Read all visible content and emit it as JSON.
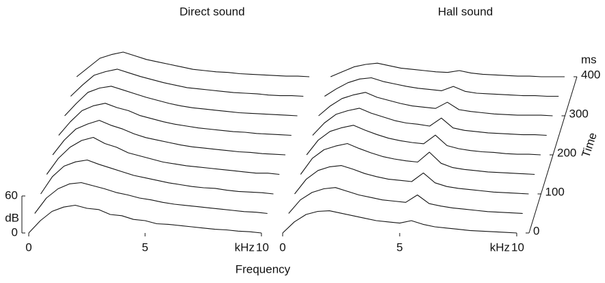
{
  "chart_data": [
    {
      "type": "waterfall",
      "title": "Direct sound",
      "xlabel": "Frequency",
      "x_unit": "kHz",
      "xlim": [
        0,
        10
      ],
      "xticks": [
        0,
        5,
        10
      ],
      "ylabel": "dB",
      "ylim": [
        0,
        60
      ],
      "yticks": [
        0,
        60
      ],
      "tlim": [
        0,
        400
      ],
      "color": "#111111",
      "x": [
        0.5,
        1,
        1.5,
        2,
        2.5,
        3,
        3.5,
        4,
        4.5,
        5,
        5.5,
        6,
        6.5,
        7,
        7.5,
        8,
        8.5,
        9,
        9.5
      ],
      "times": [
        0,
        50,
        100,
        150,
        200,
        250,
        300,
        350,
        400
      ],
      "values": [
        [
          20,
          35,
          42,
          45,
          40,
          38,
          30,
          28,
          22,
          20,
          15,
          14,
          12,
          10,
          8,
          6,
          5,
          3,
          2
        ],
        [
          25,
          40,
          48,
          50,
          45,
          40,
          34,
          30,
          25,
          22,
          18,
          15,
          13,
          11,
          9,
          7,
          5,
          3,
          2
        ],
        [
          28,
          45,
          52,
          55,
          48,
          42,
          36,
          30,
          26,
          22,
          18,
          15,
          12,
          10,
          9,
          6,
          4,
          3,
          2
        ],
        [
          26,
          44,
          55,
          60,
          50,
          44,
          35,
          30,
          25,
          20,
          17,
          14,
          12,
          10,
          8,
          6,
          4,
          2,
          2
        ],
        [
          24,
          42,
          50,
          56,
          48,
          42,
          34,
          28,
          24,
          20,
          16,
          13,
          11,
          9,
          7,
          5,
          4,
          2,
          1
        ],
        [
          22,
          40,
          48,
          52,
          45,
          40,
          32,
          27,
          22,
          18,
          15,
          12,
          10,
          8,
          6,
          5,
          3,
          2,
          1
        ],
        [
          20,
          38,
          45,
          48,
          42,
          36,
          30,
          25,
          20,
          16,
          13,
          11,
          9,
          7,
          5,
          4,
          3,
          2,
          1
        ],
        [
          18,
          34,
          40,
          44,
          38,
          32,
          27,
          22,
          18,
          14,
          12,
          10,
          8,
          6,
          5,
          4,
          2,
          1,
          1
        ],
        [
          15,
          30,
          36,
          40,
          34,
          28,
          24,
          20,
          16,
          12,
          10,
          8,
          7,
          5,
          4,
          3,
          2,
          1,
          1
        ]
      ]
    },
    {
      "type": "waterfall",
      "title": "Hall sound",
      "x_unit": "kHz",
      "xlim": [
        0,
        10
      ],
      "xticks": [
        0,
        5,
        10
      ],
      "ylim": [
        0,
        60
      ],
      "tlabel": "Time",
      "tunit": "ms",
      "tlim": [
        0,
        400
      ],
      "tticks": [
        0,
        100,
        200,
        300,
        400
      ],
      "color": "#111111",
      "x": [
        0.5,
        1,
        1.5,
        2,
        2.5,
        3,
        3.5,
        4,
        4.5,
        5,
        5.5,
        6,
        6.5,
        7,
        7.5,
        8,
        8.5,
        9,
        9.5
      ],
      "times": [
        0,
        50,
        100,
        150,
        200,
        250,
        300,
        350,
        400
      ],
      "values": [
        [
          18,
          30,
          35,
          36,
          32,
          28,
          24,
          20,
          18,
          16,
          20,
          14,
          10,
          8,
          6,
          4,
          3,
          2,
          1
        ],
        [
          22,
          34,
          40,
          42,
          36,
          30,
          26,
          22,
          20,
          18,
          30,
          16,
          12,
          9,
          7,
          5,
          3,
          2,
          1
        ],
        [
          24,
          38,
          44,
          46,
          40,
          33,
          28,
          24,
          22,
          20,
          34,
          18,
          12,
          9,
          7,
          5,
          3,
          2,
          1
        ],
        [
          26,
          40,
          46,
          50,
          42,
          35,
          29,
          25,
          22,
          20,
          36,
          18,
          11,
          8,
          6,
          4,
          3,
          2,
          1
        ],
        [
          24,
          38,
          44,
          48,
          40,
          33,
          27,
          23,
          20,
          18,
          32,
          15,
          10,
          7,
          5,
          4,
          2,
          1,
          1
        ],
        [
          20,
          34,
          40,
          44,
          36,
          30,
          24,
          20,
          18,
          15,
          28,
          12,
          8,
          6,
          4,
          3,
          2,
          1,
          1
        ],
        [
          16,
          28,
          34,
          38,
          30,
          25,
          20,
          16,
          14,
          12,
          22,
          10,
          7,
          5,
          3,
          2,
          1,
          1,
          1
        ],
        [
          12,
          22,
          28,
          30,
          24,
          20,
          16,
          13,
          11,
          9,
          16,
          8,
          5,
          4,
          3,
          2,
          1,
          1,
          0
        ],
        [
          8,
          16,
          20,
          22,
          18,
          14,
          12,
          10,
          8,
          7,
          10,
          6,
          4,
          3,
          2,
          1,
          1,
          0,
          0
        ]
      ]
    }
  ]
}
